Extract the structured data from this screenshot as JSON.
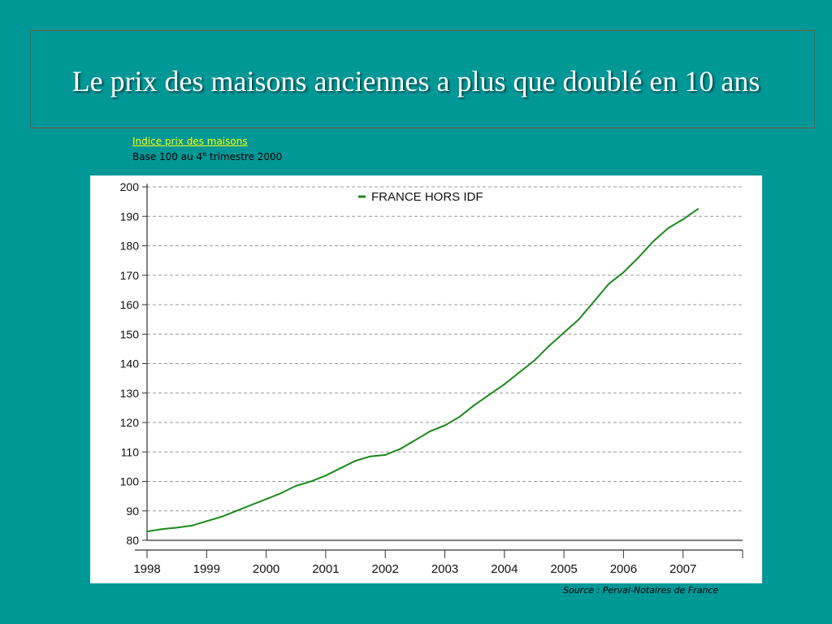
{
  "slide": {
    "title": "Le prix des maisons anciennes a plus que doublé en 10 ans",
    "subtitle_link": "Indice prix des maisons",
    "subtitle_base": "Base 100 au 4",
    "subtitle_base_sup": "e",
    "subtitle_base_rest": " trimestre 2000",
    "source": "Source : Perval-Notaires de France"
  },
  "colors": {
    "background": "#009797",
    "title": "#ffffff",
    "link": "#ffff00",
    "series": "#1a8a1a"
  },
  "chart_data": {
    "type": "line",
    "title": "",
    "xlabel": "",
    "ylabel": "",
    "ylim": [
      80,
      200
    ],
    "yticks": [
      80,
      90,
      100,
      110,
      120,
      130,
      140,
      150,
      160,
      170,
      180,
      190,
      200
    ],
    "xlim": [
      1998,
      2008
    ],
    "xtick_labels": [
      "1998",
      "1999",
      "2000",
      "2001",
      "2002",
      "2003",
      "2004",
      "2005",
      "2006",
      "2007"
    ],
    "grid": true,
    "legend_position": "top-center",
    "series": [
      {
        "name": "FRANCE HORS IDF",
        "color": "#1a8a1a",
        "points": [
          [
            1998.0,
            83
          ],
          [
            1998.25,
            83.8
          ],
          [
            1998.5,
            84.3
          ],
          [
            1998.75,
            85
          ],
          [
            1999.0,
            86.5
          ],
          [
            1999.25,
            88
          ],
          [
            1999.5,
            90
          ],
          [
            1999.75,
            92
          ],
          [
            2000.0,
            94
          ],
          [
            2000.25,
            96
          ],
          [
            2000.5,
            98.5
          ],
          [
            2000.75,
            100
          ],
          [
            2001.0,
            102
          ],
          [
            2001.25,
            104.5
          ],
          [
            2001.5,
            107
          ],
          [
            2001.75,
            108.5
          ],
          [
            2002.0,
            109
          ],
          [
            2002.25,
            111
          ],
          [
            2002.5,
            114
          ],
          [
            2002.75,
            117
          ],
          [
            2003.0,
            119
          ],
          [
            2003.25,
            122
          ],
          [
            2003.5,
            126
          ],
          [
            2003.75,
            129.5
          ],
          [
            2004.0,
            133
          ],
          [
            2004.25,
            137
          ],
          [
            2004.5,
            141
          ],
          [
            2004.75,
            146
          ],
          [
            2005.0,
            150.5
          ],
          [
            2005.25,
            155
          ],
          [
            2005.5,
            161
          ],
          [
            2005.75,
            167
          ],
          [
            2006.0,
            171
          ],
          [
            2006.25,
            176
          ],
          [
            2006.5,
            181.5
          ],
          [
            2006.75,
            186
          ],
          [
            2007.0,
            189
          ],
          [
            2007.25,
            192.5
          ]
        ]
      }
    ]
  }
}
